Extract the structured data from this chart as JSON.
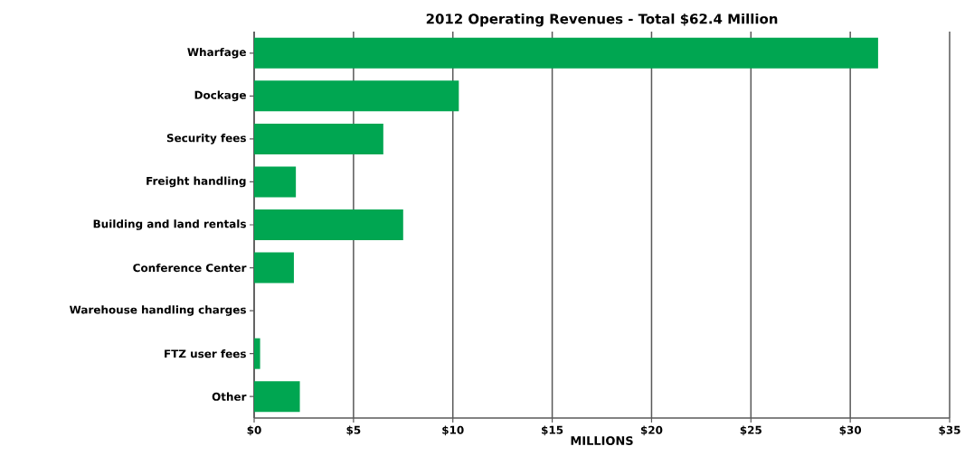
{
  "chart_data": {
    "type": "bar",
    "orientation": "horizontal",
    "title": "2012 Operating Revenues - Total $62.4 Million",
    "xlabel": "MILLIONS",
    "categories": [
      "Wharfage",
      "Dockage",
      "Security fees",
      "Freight handling",
      "Building and land rentals",
      "Conference Center",
      "Warehouse handling  charges",
      "FTZ user fees",
      "Other"
    ],
    "values": [
      31.4,
      10.3,
      6.5,
      2.1,
      7.5,
      2.0,
      0,
      0.3,
      2.3
    ],
    "color": "#00a651",
    "xlim": [
      0,
      35
    ],
    "xticks": [
      {
        "value": 0,
        "label": "$0"
      },
      {
        "value": 5,
        "label": "$5"
      },
      {
        "value": 10,
        "label": "$10"
      },
      {
        "value": 15,
        "label": "$15"
      },
      {
        "value": 20,
        "label": "$20"
      },
      {
        "value": 25,
        "label": "$25"
      },
      {
        "value": 30,
        "label": "$30"
      },
      {
        "value": 35,
        "label": "$35"
      }
    ],
    "grid": "x"
  }
}
